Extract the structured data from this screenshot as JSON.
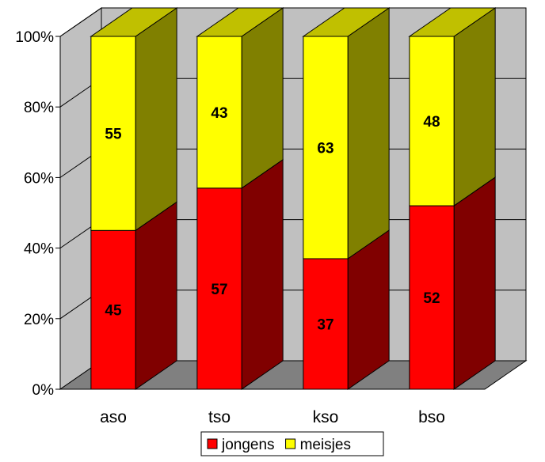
{
  "chart_data": {
    "type": "bar",
    "stacked": true,
    "percent_stacked": true,
    "three_d": true,
    "categories": [
      "aso",
      "tso",
      "kso",
      "bso"
    ],
    "series": [
      {
        "name": "jongens",
        "values": [
          45,
          57,
          37,
          52
        ],
        "labels": [
          "45",
          "57",
          "37",
          "52"
        ],
        "color": "#ff0000",
        "side_color": "#800000",
        "top_color": "#ff0000"
      },
      {
        "name": "meisjes",
        "values": [
          55,
          43,
          63,
          48
        ],
        "labels": [
          "55",
          "43",
          "63",
          "48"
        ],
        "color": "#ffff00",
        "side_color": "#808000",
        "top_color": "#c0c000"
      }
    ],
    "y_ticks": [
      "0%",
      "20%",
      "40%",
      "60%",
      "80%",
      "100%"
    ],
    "ylim": [
      0,
      100
    ],
    "grid": true,
    "legend_position": "bottom",
    "wall_color": "#c0c0c0",
    "floor_color": "#808080"
  }
}
